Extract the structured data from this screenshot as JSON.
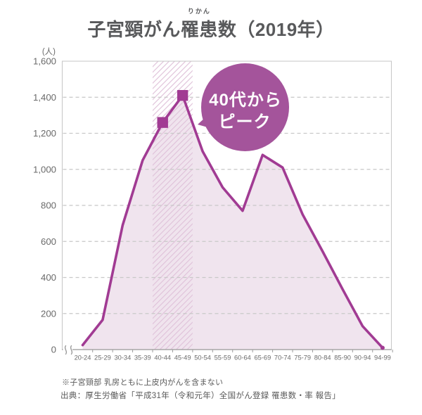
{
  "title": {
    "part1": "子宮頸がん",
    "ruby_base": "罹患",
    "ruby_text": "りかん",
    "part2": "数（2019年）"
  },
  "chart_data": {
    "type": "area",
    "title": "子宮頸がん罹患数（2019年）",
    "unit_label": "(人)",
    "categories": [
      "20-24",
      "25-29",
      "30-34",
      "35-39",
      "40-44",
      "45-49",
      "50-54",
      "55-59",
      "60-64",
      "65-69",
      "70-74",
      "75-79",
      "80-84",
      "85-90",
      "90-94",
      "94-99"
    ],
    "values": [
      25,
      165,
      690,
      1050,
      1260,
      1410,
      1100,
      900,
      770,
      1080,
      1010,
      750,
      545,
      335,
      130,
      10
    ],
    "ylim": [
      0,
      1600
    ],
    "ytick_step": 200,
    "ytick_labels": [
      "0",
      "200",
      "400",
      "600",
      "800",
      "1,000",
      "1,200",
      "1,400",
      "1,600"
    ],
    "grid": "dashed",
    "axis_break": true,
    "highlight_band": {
      "categories": [
        "40-44",
        "45-49"
      ]
    },
    "marker_categories": [
      "40-44",
      "45-49"
    ],
    "annotation": {
      "line1": "40代から",
      "line2": "ピーク"
    },
    "colors": {
      "line": "#a13b93",
      "area": "#f0e4ee",
      "hatch": "#dfc2d9",
      "bubble": "#a4549b",
      "grid": "#c8c8c8",
      "axis": "#9b9b9b",
      "border": "#c9c9c9",
      "label": "#6a6a6a",
      "title": "#58595b"
    }
  },
  "footnote": "※子宮頸部 乳房ともに上皮内がんを含まない",
  "source": "出典：厚生労働省「平成31年（令和元年）全国がん登録 罹患数・率 報告」"
}
